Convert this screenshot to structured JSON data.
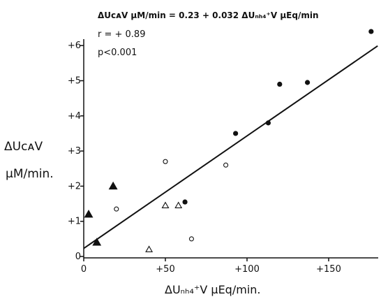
{
  "chart_data": {
    "type": "scatter",
    "annotation": {
      "equation": "ΔUᴄᴀV μM/min = 0.23 + 0.032 ΔUₙₕ₄⁺V μEq/min",
      "r": "r = + 0.89",
      "p": "p<0.001"
    },
    "ylabel_line1": "ΔUᴄᴀV",
    "ylabel_line2": "μM/min.",
    "xlabel": "ΔUₙₕ₄⁺V μEq/min.",
    "xlim": [
      0,
      180
    ],
    "ylim": [
      0,
      6.5
    ],
    "x_ticks": [
      0,
      50,
      100,
      150
    ],
    "x_tick_labels": [
      "0",
      "+50",
      "+100",
      "+150"
    ],
    "y_ticks": [
      0,
      1,
      2,
      3,
      4,
      5,
      6
    ],
    "y_tick_labels": [
      "0",
      "+1",
      "+2",
      "+3",
      "+4",
      "+5",
      "+6"
    ],
    "grid": false,
    "regression": {
      "intercept": 0.23,
      "slope": 0.032,
      "x_range": [
        0,
        180
      ]
    },
    "series": [
      {
        "marker": "filled-circle",
        "points": [
          [
            62,
            1.55
          ],
          [
            93,
            3.5
          ],
          [
            113,
            3.8
          ],
          [
            120,
            4.9
          ],
          [
            137,
            4.95
          ],
          [
            176,
            6.4
          ]
        ]
      },
      {
        "marker": "open-circle",
        "points": [
          [
            20,
            1.35
          ],
          [
            50,
            2.7
          ],
          [
            66,
            0.5
          ],
          [
            87,
            2.6
          ]
        ]
      },
      {
        "marker": "filled-triangle",
        "points": [
          [
            3,
            1.2
          ],
          [
            8,
            0.4
          ],
          [
            18,
            2.0
          ]
        ]
      },
      {
        "marker": "open-triangle",
        "points": [
          [
            40,
            0.2
          ],
          [
            50,
            1.45
          ],
          [
            58,
            1.45
          ]
        ]
      }
    ]
  }
}
